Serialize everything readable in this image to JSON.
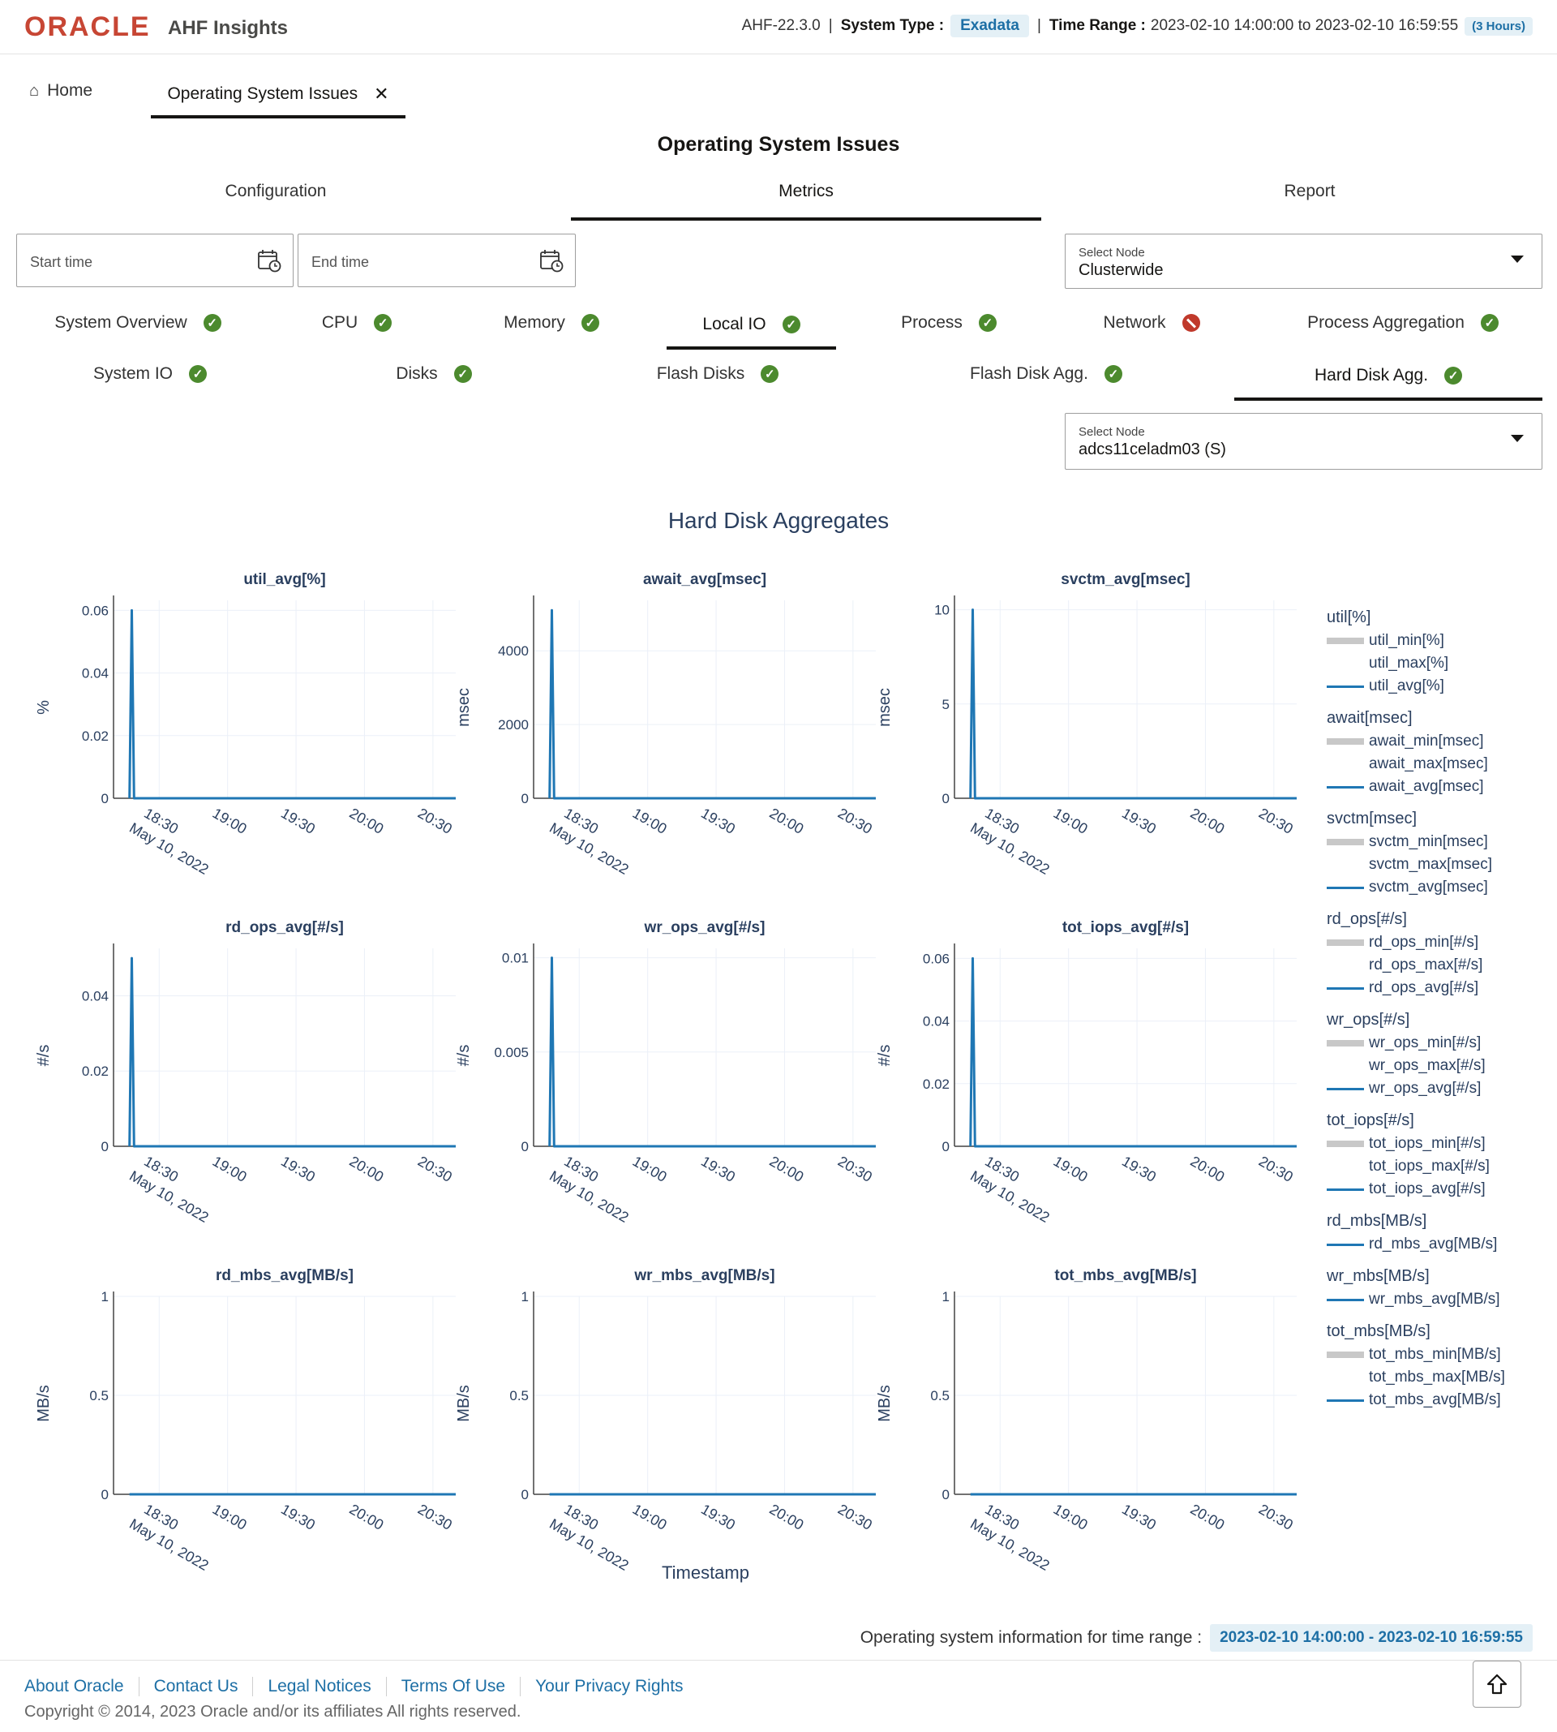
{
  "header": {
    "logo": "ORACLE",
    "app_name": "AHF Insights",
    "version": "AHF-22.3.0",
    "system_type_label": "System Type :",
    "system_type": "Exadata",
    "time_range_label": "Time Range :",
    "time_range": "2023-02-10 14:00:00 to 2023-02-10 16:59:55",
    "duration": "(3 Hours)"
  },
  "nav": {
    "home": "Home",
    "active_tab": "Operating System Issues"
  },
  "page_title": "Operating System Issues",
  "primary_tabs": [
    {
      "label": "Configuration",
      "active": false
    },
    {
      "label": "Metrics",
      "active": true
    },
    {
      "label": "Report",
      "active": false
    }
  ],
  "inputs": {
    "start_placeholder": "Start time",
    "end_placeholder": "End time",
    "node_select_label": "Select Node",
    "node_select_value": "Clusterwide",
    "node2_select_label": "Select Node",
    "node2_select_value": "adcs11celadm03 (S)"
  },
  "sub_tabs_row1": [
    {
      "label": "System Overview",
      "status": "ok"
    },
    {
      "label": "CPU",
      "status": "ok"
    },
    {
      "label": "Memory",
      "status": "ok"
    },
    {
      "label": "Local IO",
      "status": "ok",
      "active": true
    },
    {
      "label": "Process",
      "status": "ok"
    },
    {
      "label": "Network",
      "status": "error"
    },
    {
      "label": "Process Aggregation",
      "status": "ok"
    }
  ],
  "sub_tabs_row2": [
    {
      "label": "System IO",
      "status": "ok"
    },
    {
      "label": "Disks",
      "status": "ok"
    },
    {
      "label": "Flash Disks",
      "status": "ok"
    },
    {
      "label": "Flash Disk Agg.",
      "status": "ok"
    },
    {
      "label": "Hard Disk Agg.",
      "status": "ok",
      "active": true
    }
  ],
  "section_title": "Hard Disk Aggregates",
  "x_axis_title": "Timestamp",
  "x_tick_labels": [
    "18:30",
    "19:00",
    "19:30",
    "20:00",
    "20:30"
  ],
  "x_date_label": "May 10, 2022",
  "chart_data": [
    {
      "type": "line",
      "title": "util_avg[%]",
      "ylabel": "%",
      "x": [
        "2022-05-10 18:17",
        "2022-05-10 18:18",
        "2022-05-10 18:19",
        "2022-05-10 20:40"
      ],
      "values": [
        0,
        0.06,
        0,
        0
      ],
      "ylim": [
        0,
        0.0632
      ],
      "yticks": [
        "0",
        "0.02",
        "0.04",
        "0.06"
      ],
      "ytickvals": [
        0,
        0.02,
        0.04,
        0.06
      ]
    },
    {
      "type": "line",
      "title": "await_avg[msec]",
      "ylabel": "msec",
      "x": [
        "2022-05-10 18:17",
        "2022-05-10 18:18",
        "2022-05-10 18:19",
        "2022-05-10 20:40"
      ],
      "values": [
        0,
        5100,
        0,
        0
      ],
      "ylim": [
        0,
        5370
      ],
      "yticks": [
        "0",
        "2000",
        "4000"
      ],
      "ytickvals": [
        0,
        2000,
        4000
      ]
    },
    {
      "type": "line",
      "title": "svctm_avg[msec]",
      "ylabel": "msec",
      "x": [
        "2022-05-10 18:17",
        "2022-05-10 18:18",
        "2022-05-10 18:19",
        "2022-05-10 20:40"
      ],
      "values": [
        0,
        10,
        0,
        0
      ],
      "ylim": [
        0,
        10.5
      ],
      "yticks": [
        "0",
        "5",
        "10"
      ],
      "ytickvals": [
        0,
        5,
        10
      ]
    },
    {
      "type": "line",
      "title": "rd_ops_avg[#/s]",
      "ylabel": "#/s",
      "x": [
        "2022-05-10 18:17",
        "2022-05-10 18:18",
        "2022-05-10 18:19",
        "2022-05-10 20:40"
      ],
      "values": [
        0,
        0.05,
        0,
        0
      ],
      "ylim": [
        0,
        0.0526
      ],
      "yticks": [
        "0",
        "0.02",
        "0.04"
      ],
      "ytickvals": [
        0,
        0.02,
        0.04
      ]
    },
    {
      "type": "line",
      "title": "wr_ops_avg[#/s]",
      "ylabel": "#/s",
      "x": [
        "2022-05-10 18:17",
        "2022-05-10 18:18",
        "2022-05-10 18:19",
        "2022-05-10 20:40"
      ],
      "values": [
        0,
        0.01,
        0,
        0
      ],
      "ylim": [
        0,
        0.0105
      ],
      "yticks": [
        "0",
        "0.005",
        "0.01"
      ],
      "ytickvals": [
        0,
        0.005,
        0.01
      ]
    },
    {
      "type": "line",
      "title": "tot_iops_avg[#/s]",
      "ylabel": "#/s",
      "x": [
        "2022-05-10 18:17",
        "2022-05-10 18:18",
        "2022-05-10 18:19",
        "2022-05-10 20:40"
      ],
      "values": [
        0,
        0.06,
        0,
        0
      ],
      "ylim": [
        0,
        0.0632
      ],
      "yticks": [
        "0",
        "0.02",
        "0.04",
        "0.06"
      ],
      "ytickvals": [
        0,
        0.02,
        0.04,
        0.06
      ]
    },
    {
      "type": "line",
      "title": "rd_mbs_avg[MB/s]",
      "ylabel": "MB/s",
      "x": [
        "2022-05-10 18:17",
        "2022-05-10 20:40"
      ],
      "values": [
        0,
        0
      ],
      "ylim": [
        0,
        1
      ],
      "yticks": [
        "0",
        "0.5",
        "1"
      ],
      "ytickvals": [
        0,
        0.5,
        1
      ]
    },
    {
      "type": "line",
      "title": "wr_mbs_avg[MB/s]",
      "ylabel": "MB/s",
      "x": [
        "2022-05-10 18:17",
        "2022-05-10 20:40"
      ],
      "values": [
        0,
        0
      ],
      "ylim": [
        0,
        1
      ],
      "yticks": [
        "0",
        "0.5",
        "1"
      ],
      "ytickvals": [
        0,
        0.5,
        1
      ]
    },
    {
      "type": "line",
      "title": "tot_mbs_avg[MB/s]",
      "ylabel": "MB/s",
      "x": [
        "2022-05-10 18:17",
        "2022-05-10 20:40"
      ],
      "values": [
        0,
        0
      ],
      "ylim": [
        0,
        1
      ],
      "yticks": [
        "0",
        "0.5",
        "1"
      ],
      "ytickvals": [
        0,
        0.5,
        1
      ]
    }
  ],
  "legend": [
    {
      "title": "util[%]",
      "items": [
        {
          "label": "util_min[%]",
          "style": "gray"
        },
        {
          "label": "util_max[%]",
          "style": "none"
        },
        {
          "label": "util_avg[%]",
          "style": "blue"
        }
      ]
    },
    {
      "title": "await[msec]",
      "items": [
        {
          "label": "await_min[msec]",
          "style": "gray"
        },
        {
          "label": "await_max[msec]",
          "style": "none"
        },
        {
          "label": "await_avg[msec]",
          "style": "blue"
        }
      ]
    },
    {
      "title": "svctm[msec]",
      "items": [
        {
          "label": "svctm_min[msec]",
          "style": "gray"
        },
        {
          "label": "svctm_max[msec]",
          "style": "none"
        },
        {
          "label": "svctm_avg[msec]",
          "style": "blue"
        }
      ]
    },
    {
      "title": "rd_ops[#/s]",
      "items": [
        {
          "label": "rd_ops_min[#/s]",
          "style": "gray"
        },
        {
          "label": "rd_ops_max[#/s]",
          "style": "none"
        },
        {
          "label": "rd_ops_avg[#/s]",
          "style": "blue"
        }
      ]
    },
    {
      "title": "wr_ops[#/s]",
      "items": [
        {
          "label": "wr_ops_min[#/s]",
          "style": "gray"
        },
        {
          "label": "wr_ops_max[#/s]",
          "style": "none"
        },
        {
          "label": "wr_ops_avg[#/s]",
          "style": "blue"
        }
      ]
    },
    {
      "title": "tot_iops[#/s]",
      "items": [
        {
          "label": "tot_iops_min[#/s]",
          "style": "gray"
        },
        {
          "label": "tot_iops_max[#/s]",
          "style": "none"
        },
        {
          "label": "tot_iops_avg[#/s]",
          "style": "blue"
        }
      ]
    },
    {
      "title": "rd_mbs[MB/s]",
      "items": [
        {
          "label": "rd_mbs_avg[MB/s]",
          "style": "blue"
        }
      ]
    },
    {
      "title": "wr_mbs[MB/s]",
      "items": [
        {
          "label": "wr_mbs_avg[MB/s]",
          "style": "blue"
        }
      ]
    },
    {
      "title": "tot_mbs[MB/s]",
      "items": [
        {
          "label": "tot_mbs_min[MB/s]",
          "style": "gray"
        },
        {
          "label": "tot_mbs_max[MB/s]",
          "style": "none"
        },
        {
          "label": "tot_mbs_avg[MB/s]",
          "style": "blue"
        }
      ]
    }
  ],
  "range_note": {
    "label": "Operating system information for time range :",
    "value": "2023-02-10 14:00:00 - 2023-02-10 16:59:55"
  },
  "footer": {
    "links": [
      "About Oracle",
      "Contact Us",
      "Legal Notices",
      "Terms Of Use",
      "Your Privacy Rights"
    ],
    "copyright": "Copyright © 2014, 2023 Oracle and/or its affiliates All rights reserved."
  },
  "colors": {
    "brand": "#c74634",
    "line": "#1f77b4",
    "ok": "#4c8a2e",
    "error": "#c0392b",
    "link": "#1d6fa5"
  }
}
